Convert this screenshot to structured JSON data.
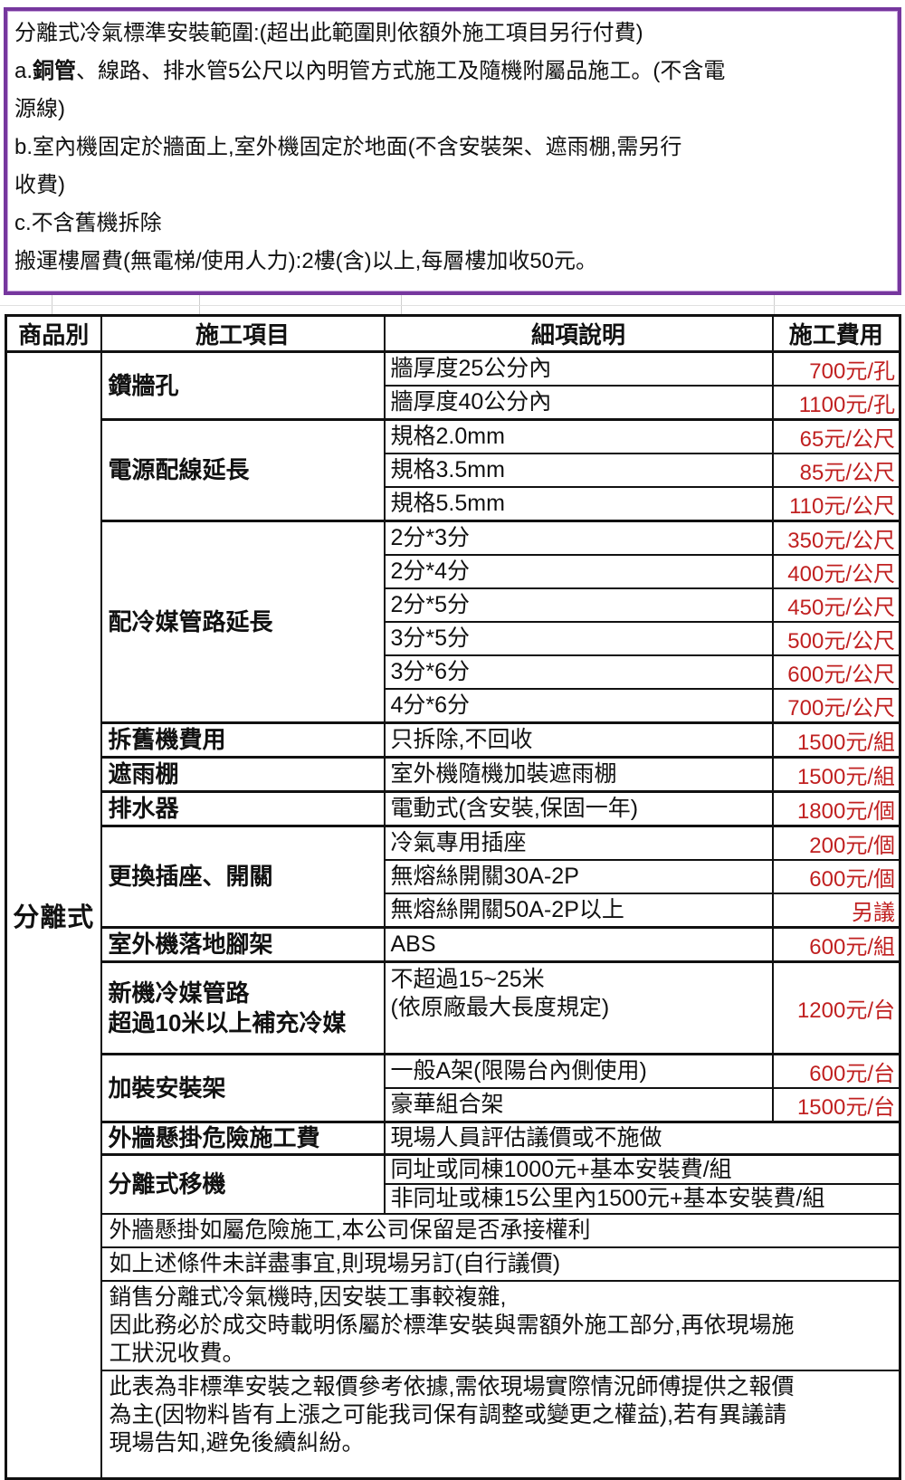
{
  "colors": {
    "border_purple": "#76379E",
    "fee_red": "#C02020",
    "grid_black": "#111111"
  },
  "notice": {
    "paragraphs": [
      [
        {
          "t": "分離式冷氣標準安裝範圍:(超出此範圍則依額外施工項目另行付費)",
          "b": false
        }
      ],
      [
        {
          "t": "a.",
          "b": false
        },
        {
          "t": "銅管",
          "b": true
        },
        {
          "t": "、線路、排水管5公尺以內明管方式施工及隨機附屬品施工。(不含電\n源線)",
          "b": false
        }
      ],
      [
        {
          "t": "b.室內機固定於牆面上,室外機固定於地面(不含安裝架、遮雨棚,需另行\n收費)",
          "b": false
        }
      ],
      [
        {
          "t": "c.不含舊機拆除",
          "b": false
        }
      ],
      [
        {
          "t": "搬運樓層費(無電梯/使用人力):2樓(含)以上,每層樓加收50元。",
          "b": false
        }
      ]
    ]
  },
  "table": {
    "headers": [
      "商品別",
      "施工項目",
      "細項說明",
      "施工費用"
    ],
    "category": "分離式",
    "groups": [
      {
        "item": "鑽牆孔",
        "rows": [
          [
            "牆厚度25公分內",
            "700元/孔"
          ],
          [
            "牆厚度40公分內",
            "1100元/孔"
          ]
        ]
      },
      {
        "item": "電源配線延長",
        "rows": [
          [
            "規格2.0mm",
            "65元/公尺"
          ],
          [
            "規格3.5mm",
            "85元/公尺"
          ],
          [
            "規格5.5mm",
            "110元/公尺"
          ]
        ]
      },
      {
        "item": "配冷媒管路延長",
        "rows": [
          [
            "2分*3分",
            "350元/公尺"
          ],
          [
            "2分*4分",
            "400元/公尺"
          ],
          [
            "2分*5分",
            "450元/公尺"
          ],
          [
            "3分*5分",
            "500元/公尺"
          ],
          [
            "3分*6分",
            "600元/公尺"
          ],
          [
            "4分*6分",
            "700元/公尺"
          ]
        ]
      },
      {
        "item": "拆舊機費用",
        "rows": [
          [
            "只拆除,不回收",
            "1500元/組"
          ]
        ]
      },
      {
        "item": "遮雨棚",
        "rows": [
          [
            "室外機隨機加裝遮雨棚",
            "1500元/組"
          ]
        ]
      },
      {
        "item": "排水器",
        "rows": [
          [
            "電動式(含安裝,保固一年)",
            "1800元/個"
          ]
        ]
      },
      {
        "item": "更換插座、開關",
        "rows": [
          [
            "冷氣專用插座",
            "200元/個"
          ],
          [
            "無熔絲開關30A-2P",
            "600元/個"
          ],
          [
            "無熔絲開關50A-2P以上",
            "另議"
          ]
        ]
      },
      {
        "item": "室外機落地腳架",
        "rows": [
          [
            "ABS",
            "600元/組"
          ]
        ]
      },
      {
        "item": "新機冷媒管路\n超過10米以上補充冷媒",
        "tall": true,
        "rows": [
          [
            "不超過15~25米\n(依原廠最大長度規定)",
            "1200元/台"
          ]
        ]
      },
      {
        "item": "加裝安裝架",
        "rows": [
          [
            "一般A架(限陽台內側使用)",
            "600元/台"
          ],
          [
            "豪華組合架",
            "1500元/台"
          ]
        ]
      },
      {
        "item": "外牆懸掛危險施工費",
        "rows": [
          [
            "現場人員評估議價或不施做",
            null
          ]
        ]
      },
      {
        "item": "分離式移機",
        "rows": [
          [
            "同址或同棟1000元+基本安裝費/組",
            null
          ],
          [
            "非同址或棟15公里內1500元+基本安裝費/組",
            null
          ]
        ]
      }
    ],
    "notes": [
      "外牆懸掛如屬危險施工,本公司保留是否承接權利",
      "如上述條件未詳盡事宜,則現場另訂(自行議價)",
      "銷售分離式冷氣機時,因安裝工事較複雜,\n因此務必於成交時載明係屬於標準安裝與需額外施工部分,再依現場施\n工狀況收費。",
      "此表為非標準安裝之報價參考依據,需依現場實際情況師傅提供之報價\n為主(因物料皆有上漲之可能我司保有調整或變更之權益),若有異議請\n現場告知,避免後續糾紛。"
    ]
  }
}
